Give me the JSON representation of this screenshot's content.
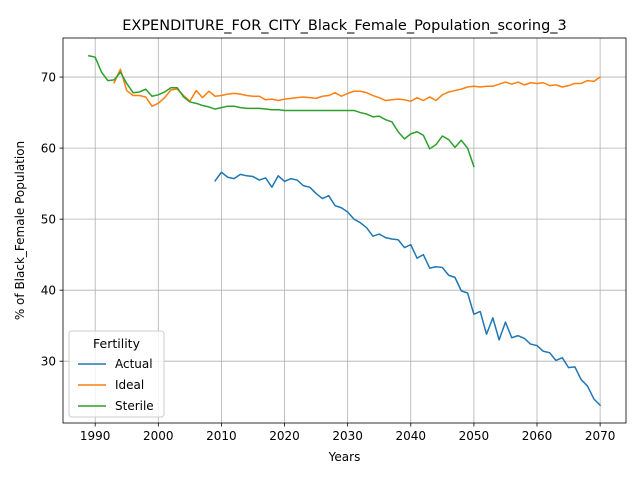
{
  "chart_data": {
    "type": "line",
    "title": "EXPENDITURE_FOR_CITY_Black_Female_Population_scoring_3",
    "xlabel": "Years",
    "ylabel": "% of Black_Female Population",
    "xlim": [
      1984.9,
      2074.1
    ],
    "ylim": [
      21.3,
      75.5
    ],
    "xticks": [
      1990,
      2000,
      2010,
      2020,
      2030,
      2040,
      2050,
      2060,
      2070
    ],
    "yticks": [
      30,
      40,
      50,
      60,
      70
    ],
    "grid": true,
    "legend": {
      "title": "Fertility",
      "placement": "lower left"
    },
    "series": [
      {
        "name": "Actual",
        "color": "#1f77b4",
        "x": [
          2009,
          2010,
          2011,
          2012,
          2013,
          2014,
          2015,
          2016,
          2017,
          2018,
          2019,
          2020,
          2021,
          2022,
          2023,
          2024,
          2025,
          2026,
          2027,
          2028,
          2029,
          2030,
          2031,
          2032,
          2033,
          2034,
          2035,
          2036,
          2037,
          2038,
          2039,
          2040,
          2041,
          2042,
          2043,
          2044,
          2045,
          2046,
          2047,
          2048,
          2049,
          2050,
          2051,
          2052,
          2053,
          2054,
          2055,
          2056,
          2057,
          2058,
          2059,
          2060,
          2061,
          2062,
          2063,
          2064,
          2065,
          2066,
          2067,
          2068,
          2069,
          2070
        ],
        "y": [
          55.4,
          56.6,
          55.9,
          55.7,
          56.3,
          56.1,
          56.0,
          55.5,
          55.8,
          54.5,
          56.1,
          55.3,
          55.7,
          55.5,
          54.7,
          54.5,
          53.6,
          52.9,
          53.3,
          51.9,
          51.6,
          51.0,
          50.0,
          49.5,
          48.8,
          47.6,
          47.9,
          47.4,
          47.2,
          47.1,
          46.0,
          46.4,
          44.5,
          45.0,
          43.1,
          43.3,
          43.2,
          42.1,
          41.8,
          39.9,
          39.6,
          36.6,
          37.0,
          33.8,
          36.1,
          33.0,
          35.5,
          33.3,
          33.6,
          33.2,
          32.4,
          32.2,
          31.4,
          31.2,
          30.1,
          30.5,
          29.1,
          29.2,
          27.4,
          26.5,
          24.7,
          23.8
        ]
      },
      {
        "name": "Ideal",
        "color": "#ff7f0e",
        "x": [
          1993,
          1994,
          1995,
          1996,
          1997,
          1998,
          1999,
          2000,
          2001,
          2002,
          2003,
          2004,
          2005,
          2006,
          2007,
          2008,
          2009,
          2010,
          2011,
          2012,
          2013,
          2014,
          2015,
          2016,
          2017,
          2018,
          2019,
          2020,
          2021,
          2022,
          2023,
          2024,
          2025,
          2026,
          2027,
          2028,
          2029,
          2030,
          2031,
          2032,
          2033,
          2034,
          2035,
          2036,
          2037,
          2038,
          2039,
          2040,
          2041,
          2042,
          2043,
          2044,
          2045,
          2046,
          2047,
          2048,
          2049,
          2050,
          2051,
          2052,
          2053,
          2054,
          2055,
          2056,
          2057,
          2058,
          2059,
          2060,
          2061,
          2062,
          2063,
          2064,
          2065,
          2066,
          2067,
          2068,
          2069,
          2070
        ],
        "y": [
          69.2,
          71.1,
          68.1,
          67.4,
          67.4,
          67.2,
          65.9,
          66.3,
          67.1,
          68.2,
          68.3,
          67.4,
          66.6,
          68.1,
          67.1,
          68.0,
          67.3,
          67.4,
          67.6,
          67.7,
          67.6,
          67.4,
          67.3,
          67.3,
          66.8,
          66.9,
          66.7,
          66.9,
          67.0,
          67.1,
          67.2,
          67.1,
          67.0,
          67.3,
          67.4,
          67.8,
          67.3,
          67.7,
          68.0,
          68.0,
          67.8,
          67.4,
          67.1,
          66.7,
          66.8,
          66.9,
          66.8,
          66.6,
          67.1,
          66.7,
          67.2,
          66.7,
          67.5,
          67.9,
          68.1,
          68.3,
          68.6,
          68.7,
          68.6,
          68.7,
          68.7,
          69.0,
          69.3,
          69.0,
          69.3,
          68.9,
          69.2,
          69.1,
          69.2,
          68.8,
          68.9,
          68.6,
          68.8,
          69.1,
          69.1,
          69.5,
          69.4,
          70.0
        ]
      },
      {
        "name": "Sterile",
        "color": "#2ca02c",
        "x": [
          1989,
          1990,
          1991,
          1992,
          1993,
          1994,
          1995,
          1996,
          1997,
          1998,
          1999,
          2000,
          2001,
          2002,
          2003,
          2004,
          2005,
          2006,
          2007,
          2008,
          2009,
          2010,
          2011,
          2012,
          2013,
          2014,
          2015,
          2016,
          2017,
          2018,
          2019,
          2020,
          2021,
          2022,
          2023,
          2024,
          2025,
          2026,
          2027,
          2028,
          2029,
          2030,
          2031,
          2032,
          2033,
          2034,
          2035,
          2036,
          2037,
          2038,
          2039,
          2040,
          2041,
          2042,
          2043,
          2044,
          2045,
          2046,
          2047,
          2048,
          2049,
          2050
        ],
        "y": [
          73.0,
          72.8,
          70.7,
          69.5,
          69.6,
          70.7,
          69.1,
          67.8,
          67.9,
          68.3,
          67.3,
          67.5,
          67.9,
          68.5,
          68.5,
          67.2,
          66.5,
          66.3,
          66.0,
          65.8,
          65.5,
          65.7,
          65.9,
          65.9,
          65.7,
          65.6,
          65.6,
          65.6,
          65.5,
          65.4,
          65.4,
          65.3,
          65.3,
          65.3,
          65.3,
          65.3,
          65.3,
          65.3,
          65.3,
          65.3,
          65.3,
          65.3,
          65.3,
          65.0,
          64.8,
          64.4,
          64.5,
          64.0,
          63.7,
          62.3,
          61.3,
          62.0,
          62.3,
          61.8,
          59.9,
          60.5,
          61.7,
          61.2,
          60.1,
          61.1,
          60.0,
          57.4
        ]
      }
    ]
  }
}
